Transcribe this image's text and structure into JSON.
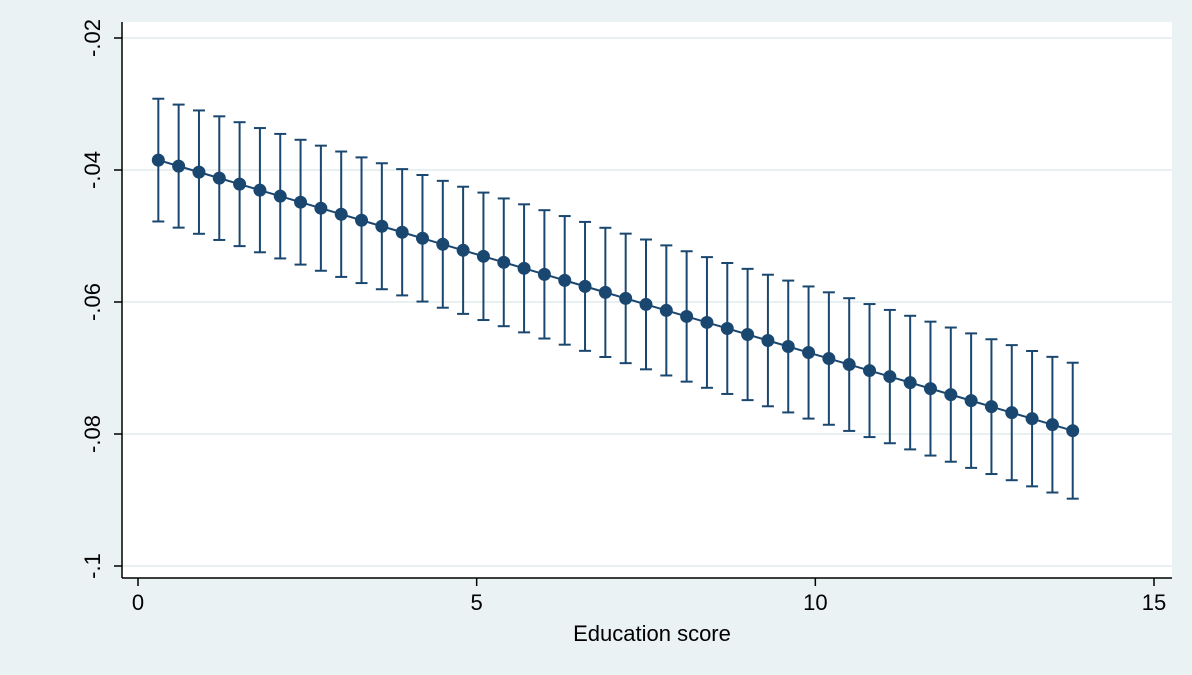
{
  "chart_data": {
    "type": "scatter",
    "title": "",
    "xlabel": "Education score",
    "ylabel": "",
    "xlim": [
      0,
      15
    ],
    "ylim": [
      -0.1,
      -0.02
    ],
    "x_ticks": [
      0,
      5,
      10,
      15
    ],
    "x_tick_labels": [
      "0",
      "5",
      "10",
      "15"
    ],
    "y_ticks": [
      -0.1,
      -0.08,
      -0.06,
      -0.04,
      -0.02
    ],
    "y_tick_labels": [
      "-.1",
      "-.08",
      "-.06",
      "-.04",
      "-.02"
    ],
    "grid": true,
    "legend": "none",
    "colors": {
      "background": "#eaf2f3",
      "plot_area": "#ffffff",
      "grid": "#e2ecee",
      "marker": "#1a476f"
    },
    "series": [
      {
        "x_start": 0.3,
        "x_step": 0.3,
        "count": 46,
        "y_start": -0.0385,
        "y_end": -0.0795,
        "ci_half_start": 0.0093,
        "ci_half_end": 0.0103,
        "x": [
          0.3,
          0.6,
          0.9,
          1.2,
          1.5,
          1.8,
          2.1,
          2.4,
          2.7,
          3.0,
          3.3,
          3.6,
          3.9,
          4.2,
          4.5,
          4.8,
          5.1,
          5.4,
          5.7,
          6.0,
          6.3,
          6.6,
          6.9,
          7.2,
          7.5,
          7.8,
          8.1,
          8.4,
          8.7,
          9.0,
          9.3,
          9.6,
          9.9,
          10.2,
          10.5,
          10.8,
          11.1,
          11.4,
          11.7,
          12.0,
          12.3,
          12.6,
          12.9,
          13.2,
          13.5,
          13.8
        ]
      }
    ]
  }
}
